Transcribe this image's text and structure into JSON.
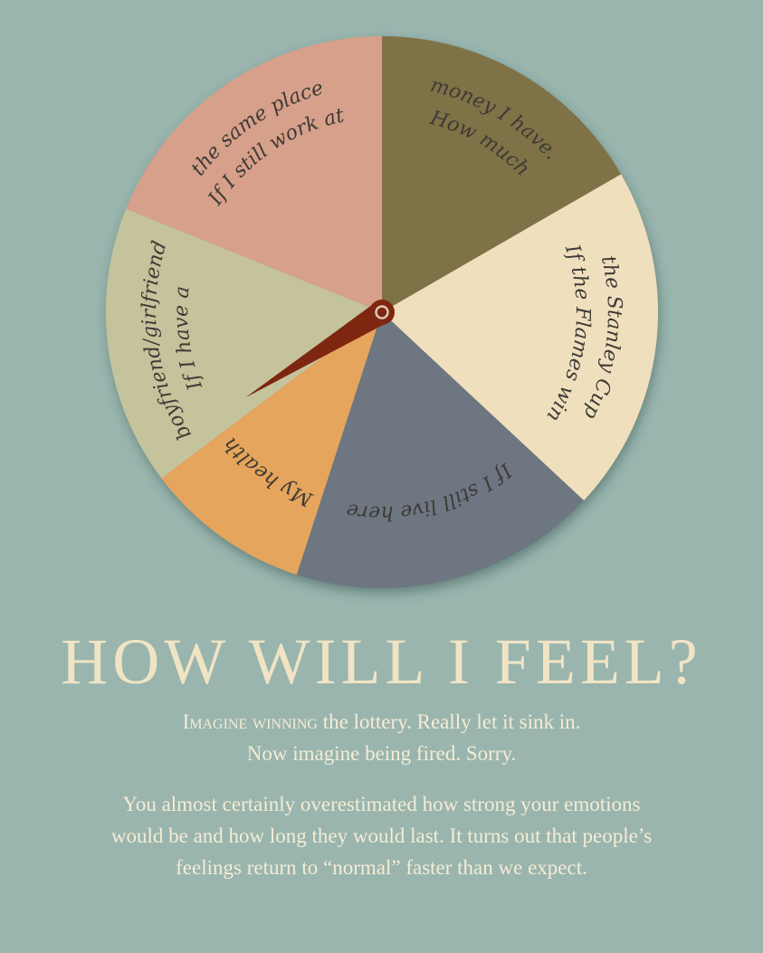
{
  "wheel": {
    "segments": [
      {
        "id": "money",
        "lines": [
          "How much",
          "money I have."
        ],
        "color": "#7f7247",
        "start": 0,
        "end": 60
      },
      {
        "id": "stanley-cup",
        "lines": [
          "If the Flames win",
          "the Stanley Cup"
        ],
        "color": "#efdfbd",
        "start": 60,
        "end": 133
      },
      {
        "id": "live-here",
        "lines": [
          "If I still live here"
        ],
        "color": "#6d7681",
        "start": 133,
        "end": 198
      },
      {
        "id": "health",
        "lines": [
          "My health"
        ],
        "color": "#e5a55c",
        "start": 198,
        "end": 233
      },
      {
        "id": "relationship",
        "lines": [
          "If I have a",
          "boyfriend/girlfriend"
        ],
        "color": "#c5c39b",
        "start": 233,
        "end": 292
      },
      {
        "id": "work",
        "lines": [
          "If I still work at",
          "the same place"
        ],
        "color": "#d6a08a",
        "start": 292,
        "end": 360
      }
    ],
    "pointer": {
      "angle": 238,
      "color": "#7e2610"
    }
  },
  "title": "HOW WILL I FEEL?",
  "intro": {
    "lead": "Imagine winning",
    "line1_rest": " the lottery. Really let it sink in.",
    "line2": "Now imagine being fired. Sorry."
  },
  "body": {
    "line1": "You almost certainly overestimated how strong your emotions",
    "line2": "would be and how long they would last. It turns out that people’s",
    "line3": "feelings return to “normal” faster than we expect."
  }
}
